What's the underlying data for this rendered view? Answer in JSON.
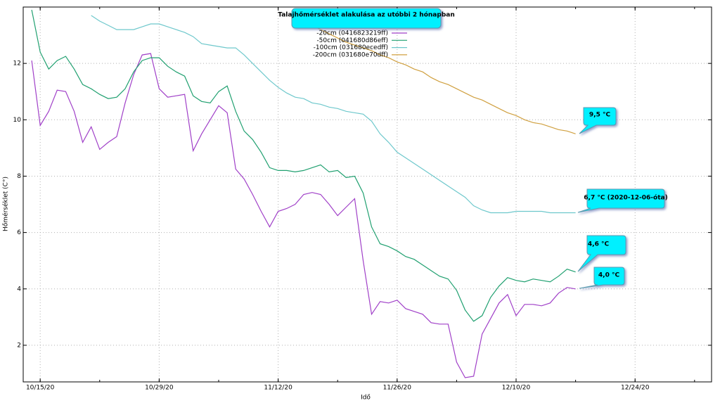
{
  "chart_data": {
    "type": "line",
    "title": "Talajhőmérséklet alakulása az utóbbi 2 hónapban",
    "x_label": "Idő",
    "y_label": "Hőmérséklet (C°)",
    "x": [
      "10/14/20",
      "10/15/20",
      "10/16/20",
      "10/17/20",
      "10/18/20",
      "10/19/20",
      "10/20/20",
      "10/21/20",
      "10/22/20",
      "10/23/20",
      "10/24/20",
      "10/25/20",
      "10/26/20",
      "10/27/20",
      "10/28/20",
      "10/29/20",
      "10/30/20",
      "10/31/20",
      "11/01/20",
      "11/02/20",
      "11/03/20",
      "11/04/20",
      "11/05/20",
      "11/06/20",
      "11/07/20",
      "11/08/20",
      "11/09/20",
      "11/10/20",
      "11/11/20",
      "11/12/20",
      "11/13/20",
      "11/14/20",
      "11/15/20",
      "11/16/20",
      "11/17/20",
      "11/18/20",
      "11/19/20",
      "11/20/20",
      "11/21/20",
      "11/22/20",
      "11/23/20",
      "11/24/20",
      "11/25/20",
      "11/26/20",
      "11/27/20",
      "11/28/20",
      "11/29/20",
      "11/30/20",
      "12/01/20",
      "12/02/20",
      "12/03/20",
      "12/04/20",
      "12/05/20",
      "12/06/20",
      "12/07/20",
      "12/08/20",
      "12/09/20",
      "12/10/20",
      "12/11/20",
      "12/12/20",
      "12/13/20",
      "12/14/20",
      "12/15/20",
      "12/16/20",
      "12/17/20"
    ],
    "series": [
      {
        "name": "-20cm (0416823219ff)",
        "color": "#a040c8",
        "values": [
          12.1,
          9.8,
          10.3,
          11.05,
          11.0,
          10.3,
          9.2,
          9.75,
          8.95,
          9.2,
          9.4,
          10.6,
          11.6,
          12.3,
          12.35,
          11.1,
          10.8,
          10.85,
          10.9,
          8.9,
          9.5,
          10.0,
          10.5,
          10.25,
          8.25,
          7.9,
          7.35,
          6.75,
          6.2,
          6.75,
          6.85,
          7.0,
          7.35,
          7.42,
          7.35,
          7.0,
          6.6,
          6.9,
          7.2,
          5.0,
          3.1,
          3.55,
          3.5,
          3.6,
          3.3,
          3.2,
          3.1,
          2.8,
          2.75,
          2.75,
          1.4,
          0.85,
          0.9,
          2.4,
          2.95,
          3.5,
          3.8,
          3.05,
          3.45,
          3.45,
          3.4,
          3.5,
          3.85,
          4.05,
          4.0
        ]
      },
      {
        "name": "-50cm (041680d86eff)",
        "color": "#20a070",
        "values": [
          13.9,
          12.4,
          11.8,
          12.1,
          12.25,
          11.8,
          11.25,
          11.1,
          10.9,
          10.75,
          10.8,
          11.1,
          11.7,
          12.1,
          12.2,
          12.2,
          11.9,
          11.7,
          11.55,
          10.85,
          10.65,
          10.6,
          11.0,
          11.2,
          10.3,
          9.6,
          9.3,
          8.85,
          8.3,
          8.2,
          8.2,
          8.15,
          8.2,
          8.3,
          8.4,
          8.15,
          8.2,
          7.95,
          8.0,
          7.4,
          6.2,
          5.6,
          5.5,
          5.35,
          5.15,
          5.05,
          4.85,
          4.65,
          4.45,
          4.35,
          3.95,
          3.25,
          2.85,
          3.05,
          3.7,
          4.1,
          4.4,
          4.3,
          4.25,
          4.35,
          4.3,
          4.25,
          4.45,
          4.7,
          4.6
        ]
      },
      {
        "name": "-100cm (031680ecedff)",
        "color": "#6ec8cc",
        "values": [
          null,
          null,
          null,
          null,
          null,
          null,
          null,
          13.7,
          13.5,
          13.35,
          13.2,
          13.2,
          13.2,
          13.3,
          13.4,
          13.4,
          13.3,
          13.2,
          13.1,
          12.95,
          12.7,
          12.65,
          12.6,
          12.55,
          12.55,
          12.3,
          12.0,
          11.7,
          11.4,
          11.15,
          10.95,
          10.8,
          10.75,
          10.6,
          10.55,
          10.45,
          10.4,
          10.3,
          10.25,
          10.2,
          9.95,
          9.5,
          9.2,
          8.85,
          8.65,
          8.45,
          8.25,
          8.05,
          7.85,
          7.65,
          7.45,
          7.25,
          6.95,
          6.8,
          6.7,
          6.7,
          6.7,
          6.75,
          6.75,
          6.75,
          6.75,
          6.7,
          6.7,
          6.7,
          6.7
        ]
      },
      {
        "name": "-200cm (031680e70dff)",
        "color": "#d0a040",
        "values": [
          null,
          null,
          null,
          null,
          null,
          null,
          null,
          null,
          null,
          null,
          null,
          null,
          null,
          null,
          null,
          null,
          null,
          null,
          null,
          null,
          null,
          null,
          null,
          null,
          null,
          null,
          null,
          null,
          null,
          null,
          null,
          null,
          null,
          13.35,
          13.2,
          13.05,
          12.9,
          12.75,
          12.65,
          12.55,
          12.45,
          12.3,
          12.2,
          12.05,
          11.95,
          11.8,
          11.7,
          11.5,
          11.35,
          11.25,
          11.1,
          10.95,
          10.8,
          10.7,
          10.55,
          10.4,
          10.25,
          10.15,
          10.0,
          9.9,
          9.85,
          9.75,
          9.65,
          9.6,
          9.5
        ]
      }
    ],
    "xlim": [
      "10/13/20",
      "01/02/21"
    ],
    "xticks": [
      "10/15/20",
      "10/29/20",
      "11/12/20",
      "11/26/20",
      "12/10/20",
      "12/24/20"
    ],
    "ylim": [
      0.7,
      14
    ],
    "yticks": [
      2,
      4,
      6,
      8,
      10,
      12
    ],
    "grid": true,
    "legend": "top",
    "annotations": [
      "9,5 °C",
      "6,7 °C (2020-12-06-óta)",
      "4,6 °C",
      "4,0 °C"
    ]
  }
}
